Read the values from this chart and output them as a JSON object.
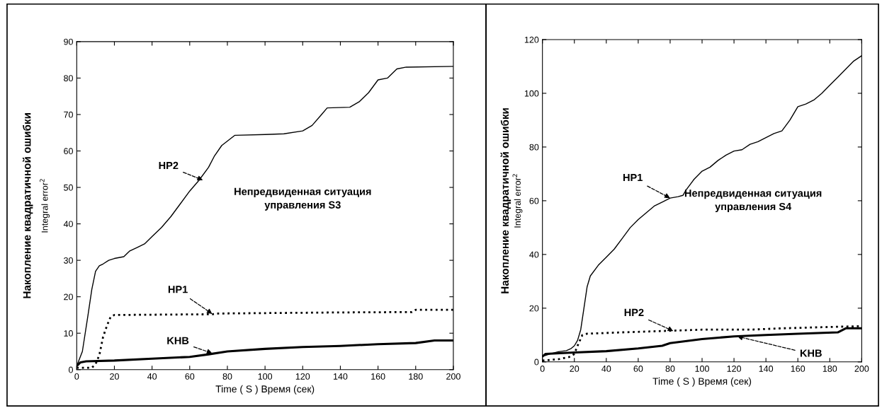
{
  "chart_data": [
    {
      "type": "line",
      "xlabel": "Time ( S ) Время (сек)",
      "ylabel": "Накопление квадратичной ошибки\nIntegral error$^{2}$",
      "xlim": [
        0,
        200
      ],
      "xticks": [
        0,
        20,
        40,
        60,
        80,
        100,
        120,
        140,
        160,
        180,
        200
      ],
      "ylim": [
        0,
        90
      ],
      "yticks": [
        0,
        10,
        20,
        30,
        40,
        50,
        60,
        70,
        80,
        90
      ],
      "grid": false,
      "legend": false,
      "annotations": [
        {
          "text": "HP2",
          "x": 67,
          "y": 52
        },
        {
          "text": "HP1",
          "x": 72,
          "y": 15.3
        },
        {
          "text": "KHB",
          "x": 72,
          "y": 4.5
        },
        "Непредвиденная ситуация\nуправления S3"
      ],
      "series": [
        {
          "color": "#000000",
          "line_style": "solid",
          "x": [
            0,
            3,
            6,
            8,
            10,
            12,
            14,
            17,
            20,
            25,
            28,
            32,
            36,
            40,
            45,
            50,
            55,
            60,
            65,
            70,
            73,
            77,
            84,
            100,
            110,
            120,
            125,
            130,
            133,
            145,
            150,
            155,
            160,
            165,
            170,
            175,
            200
          ],
          "values": [
            1,
            5,
            15,
            22,
            27,
            28.5,
            29,
            30,
            30.5,
            31,
            32.5,
            33.5,
            34.5,
            36.5,
            39,
            42,
            45.5,
            49,
            52,
            55.5,
            58.5,
            61.5,
            64.3,
            64.5,
            64.7,
            65.5,
            67,
            70,
            71.8,
            72,
            73.5,
            76,
            79.5,
            80,
            82.5,
            83,
            83.2
          ]
        },
        {
          "color": "#000000",
          "line_style": "dotted",
          "x": [
            0,
            8,
            10,
            12,
            14,
            16,
            18,
            20,
            72,
            75,
            140,
            178,
            180,
            200
          ],
          "values": [
            0.5,
            0.5,
            1.5,
            4,
            9,
            12,
            14.5,
            15,
            15.2,
            15.4,
            15.7,
            15.8,
            16.4,
            16.4
          ]
        },
        {
          "color": "#000000",
          "line_style": "solid",
          "x": [
            0,
            2,
            5,
            20,
            40,
            60,
            70,
            80,
            100,
            120,
            140,
            160,
            180,
            190,
            200
          ],
          "values": [
            1,
            2,
            2.3,
            2.5,
            3,
            3.5,
            4.2,
            5,
            5.7,
            6.2,
            6.5,
            7,
            7.3,
            8,
            8
          ]
        }
      ]
    },
    {
      "type": "line",
      "xlabel": "Time ( S ) Время (сек)",
      "ylabel": "Накопление квадратичной ошибки\nIntegral error$^{2}$",
      "xlim": [
        0,
        200
      ],
      "xticks": [
        0,
        20,
        40,
        60,
        80,
        100,
        120,
        140,
        160,
        180,
        200
      ],
      "ylim": [
        0,
        120
      ],
      "yticks": [
        0,
        20,
        40,
        60,
        80,
        100,
        120
      ],
      "grid": false,
      "legend": false,
      "annotations": [
        {
          "text": "HP1",
          "x": 80,
          "y": 61
        },
        {
          "text": "HP2",
          "x": 82,
          "y": 11.5
        },
        {
          "text": "KHB",
          "x": 122,
          "y": 9.5
        },
        "Непредвиденная ситуация\nуправления S4"
      ],
      "series": [
        {
          "color": "#000000",
          "line_style": "solid",
          "x": [
            0,
            5,
            10,
            15,
            18,
            20,
            22,
            24,
            26,
            28,
            30,
            35,
            40,
            45,
            50,
            55,
            60,
            65,
            70,
            75,
            80,
            85,
            88,
            90,
            95,
            100,
            105,
            110,
            115,
            120,
            125,
            130,
            135,
            140,
            145,
            150,
            155,
            160,
            165,
            170,
            175,
            180,
            185,
            190,
            195,
            200
          ],
          "values": [
            2,
            3,
            3.8,
            4.2,
            5,
            6,
            8,
            12,
            20,
            28,
            32,
            36,
            39,
            42,
            46,
            50,
            53,
            55.5,
            58,
            59.5,
            61,
            61.5,
            62,
            64,
            68,
            71,
            72.5,
            75,
            77,
            78.5,
            79,
            81,
            82,
            83.5,
            85,
            86,
            90,
            95,
            96,
            97.5,
            100,
            103,
            106,
            109,
            112,
            114
          ]
        },
        {
          "color": "#000000",
          "line_style": "dotted",
          "x": [
            0,
            10,
            18,
            20,
            22,
            25,
            28,
            50,
            75,
            100,
            130,
            150,
            180,
            200
          ],
          "values": [
            0.5,
            1,
            2,
            3,
            6,
            10,
            10.5,
            11,
            11.5,
            12,
            12,
            12.5,
            13,
            13.3
          ]
        },
        {
          "color": "#000000",
          "line_style": "solid",
          "x": [
            0,
            2,
            20,
            40,
            60,
            75,
            80,
            100,
            120,
            140,
            160,
            185,
            190,
            200
          ],
          "values": [
            2,
            3,
            3.5,
            4,
            5,
            6,
            7,
            8.5,
            9.5,
            10,
            10.5,
            11,
            12.5,
            12.5
          ]
        }
      ]
    }
  ]
}
